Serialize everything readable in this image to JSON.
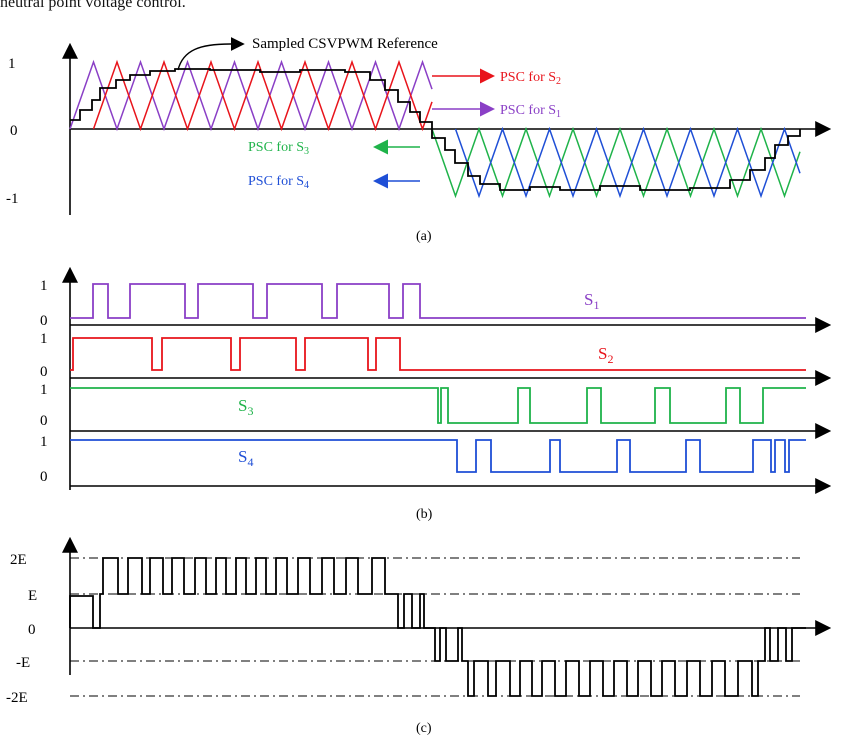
{
  "caption_top": "neutral point voltage control.",
  "panel_a": {
    "caption": "(a)",
    "y_ticks": [
      "1",
      "0",
      "-1"
    ],
    "reference_label": "Sampled CSVPWM Reference",
    "carriers": [
      {
        "label": "PSC for S",
        "sub": "2",
        "color": "#e8141b"
      },
      {
        "label": "PSC for S",
        "sub": "1",
        "color": "#8a3fc6"
      },
      {
        "label": "PSC for S",
        "sub": "3",
        "color": "#1fb34a"
      },
      {
        "label": "PSC for S",
        "sub": "4",
        "color": "#1f4fd6"
      }
    ]
  },
  "panel_b": {
    "caption": "(b)",
    "signals": [
      {
        "label": "S",
        "sub": "1",
        "high": "1",
        "low": "0",
        "color": "#8a3fc6"
      },
      {
        "label": "S",
        "sub": "2",
        "high": "1",
        "low": "0",
        "color": "#e8141b"
      },
      {
        "label": "S",
        "sub": "3",
        "high": "1",
        "low": "0",
        "color": "#1fb34a"
      },
      {
        "label": "S",
        "sub": "4",
        "high": "1",
        "low": "0",
        "color": "#1f4fd6"
      }
    ]
  },
  "panel_c": {
    "caption": "(c)",
    "levels": [
      "2E",
      "E",
      "0",
      "-E",
      "-2E"
    ]
  }
}
